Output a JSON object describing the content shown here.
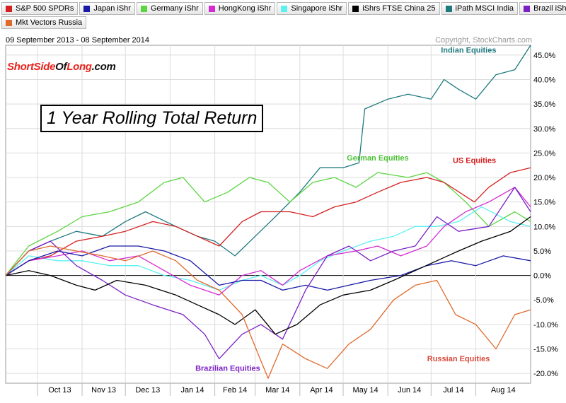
{
  "legend": {
    "row1": [
      {
        "label": "S&P 500 SPDRs",
        "color": "#d42020"
      },
      {
        "label": "Japan iShr",
        "color": "#1a1aa6"
      },
      {
        "label": "Germany iShr",
        "color": "#5ad640"
      },
      {
        "label": "HongKong iShr",
        "color": "#d42ad4"
      },
      {
        "label": "Singapore iShr",
        "color": "#5cf0f0"
      },
      {
        "label": "iShrs FTSE China 25",
        "color": "#000000"
      },
      {
        "label": "iPath MSCI India",
        "color": "#1f7a80"
      },
      {
        "label": "Brazil iShr",
        "color": "#7a20c4"
      }
    ],
    "row2": [
      {
        "label": "Mkt Vectors Russia",
        "color": "#e06a2c"
      }
    ]
  },
  "header": {
    "date_range": "09 September 2013 - 08 September 2014",
    "copyright": "Copyright, StockCharts.com"
  },
  "brand": {
    "part1": "ShortSide",
    "part2": "Of",
    "part3": "Long",
    "part4": ".com"
  },
  "title": "1 Year Rolling Total Return",
  "chart_data": {
    "type": "line",
    "title": "1 Year Rolling Total Return",
    "x_range": [
      "2013-09-09",
      "2014-09-08"
    ],
    "ylim": [
      -22,
      47
    ],
    "y_ticks": [
      -20,
      -15,
      -10,
      -5,
      0,
      5,
      10,
      15,
      20,
      25,
      30,
      35,
      40,
      45
    ],
    "y_tick_labels": [
      "-20.0%",
      "-15.0%",
      "-10.0%",
      "-5.0%",
      "0.0%",
      "5.0%",
      "10.0%",
      "15.0%",
      "20.0%",
      "25.0%",
      "30.0%",
      "35.0%",
      "40.0%",
      "45.0%"
    ],
    "x_tick_labels": [
      "Oct 13",
      "Nov 13",
      "Dec 13",
      "Jan 14",
      "Feb 14",
      "Mar 14",
      "Apr 14",
      "May 14",
      "Jun 14",
      "Jul 14",
      "Aug 14"
    ],
    "x_tick_dates": [
      "2013-10-01",
      "2013-11-01",
      "2013-12-01",
      "2014-01-01",
      "2014-02-01",
      "2014-03-01",
      "2014-04-01",
      "2014-05-01",
      "2014-06-01",
      "2014-07-01",
      "2014-08-01"
    ],
    "grid": true,
    "annotations": [
      {
        "text": "Indian Equities",
        "color": "#1f7a80",
        "date": "2014-07-27",
        "y": 45.5
      },
      {
        "text": "German Equities",
        "color": "#4cc236",
        "date": "2014-05-25",
        "y": 23.5
      },
      {
        "text": "US Equities",
        "color": "#d42020",
        "date": "2014-07-31",
        "y": 23.0
      },
      {
        "text": "Russian Equities",
        "color": "#d8483a",
        "date": "2014-07-20",
        "y": -17.5
      },
      {
        "text": "Brazilian Equities",
        "color": "#7a20c4",
        "date": "2014-02-10",
        "y": -19.5
      }
    ],
    "series": [
      {
        "name": "iPath MSCI India",
        "color": "#1f7a80",
        "points": [
          [
            "2013-09-09",
            0
          ],
          [
            "2013-09-25",
            5
          ],
          [
            "2013-10-10",
            7
          ],
          [
            "2013-10-28",
            9
          ],
          [
            "2013-11-15",
            8
          ],
          [
            "2013-12-01",
            11
          ],
          [
            "2013-12-15",
            13
          ],
          [
            "2014-01-05",
            10
          ],
          [
            "2014-01-20",
            8
          ],
          [
            "2014-02-01",
            7
          ],
          [
            "2014-02-15",
            4
          ],
          [
            "2014-03-01",
            8
          ],
          [
            "2014-03-15",
            12
          ],
          [
            "2014-04-01",
            17
          ],
          [
            "2014-04-15",
            22
          ],
          [
            "2014-05-01",
            22
          ],
          [
            "2014-05-12",
            23
          ],
          [
            "2014-05-16",
            34
          ],
          [
            "2014-06-01",
            36
          ],
          [
            "2014-06-15",
            37
          ],
          [
            "2014-07-01",
            36
          ],
          [
            "2014-07-10",
            40
          ],
          [
            "2014-07-20",
            38
          ],
          [
            "2014-08-01",
            36
          ],
          [
            "2014-08-15",
            41
          ],
          [
            "2014-08-28",
            42
          ],
          [
            "2014-09-08",
            47
          ]
        ]
      },
      {
        "name": "Germany iShr",
        "color": "#5ad640",
        "points": [
          [
            "2013-09-09",
            0
          ],
          [
            "2013-09-25",
            6
          ],
          [
            "2013-10-15",
            9
          ],
          [
            "2013-11-01",
            12
          ],
          [
            "2013-11-20",
            13
          ],
          [
            "2013-12-10",
            15
          ],
          [
            "2013-12-28",
            19
          ],
          [
            "2014-01-10",
            20
          ],
          [
            "2014-01-25",
            15
          ],
          [
            "2014-02-10",
            17
          ],
          [
            "2014-02-25",
            20
          ],
          [
            "2014-03-10",
            19
          ],
          [
            "2014-03-25",
            15
          ],
          [
            "2014-04-10",
            19
          ],
          [
            "2014-04-25",
            20
          ],
          [
            "2014-05-10",
            18
          ],
          [
            "2014-05-25",
            21
          ],
          [
            "2014-06-15",
            20
          ],
          [
            "2014-06-28",
            21
          ],
          [
            "2014-07-10",
            19
          ],
          [
            "2014-07-25",
            15
          ],
          [
            "2014-08-10",
            10
          ],
          [
            "2014-08-28",
            13
          ],
          [
            "2014-09-08",
            11
          ]
        ]
      },
      {
        "name": "S&P 500 SPDRs",
        "color": "#d42020",
        "points": [
          [
            "2013-09-09",
            0
          ],
          [
            "2013-09-25",
            3
          ],
          [
            "2013-10-10",
            4
          ],
          [
            "2013-10-28",
            7
          ],
          [
            "2013-11-15",
            8
          ],
          [
            "2013-12-01",
            9
          ],
          [
            "2013-12-20",
            11
          ],
          [
            "2014-01-05",
            10
          ],
          [
            "2014-01-20",
            8
          ],
          [
            "2014-02-04",
            6
          ],
          [
            "2014-02-20",
            11
          ],
          [
            "2014-03-05",
            13
          ],
          [
            "2014-03-25",
            13
          ],
          [
            "2014-04-10",
            12
          ],
          [
            "2014-04-25",
            14
          ],
          [
            "2014-05-10",
            15
          ],
          [
            "2014-05-25",
            17
          ],
          [
            "2014-06-10",
            19
          ],
          [
            "2014-06-28",
            20
          ],
          [
            "2014-07-10",
            19
          ],
          [
            "2014-07-31",
            15
          ],
          [
            "2014-08-10",
            18
          ],
          [
            "2014-08-25",
            21
          ],
          [
            "2014-09-08",
            22
          ]
        ]
      },
      {
        "name": "Singapore iShr",
        "color": "#5cf0f0",
        "points": [
          [
            "2013-09-09",
            0
          ],
          [
            "2013-09-25",
            4
          ],
          [
            "2013-10-15",
            3
          ],
          [
            "2013-11-01",
            3
          ],
          [
            "2013-11-20",
            2
          ],
          [
            "2013-12-10",
            2
          ],
          [
            "2013-12-28",
            0
          ],
          [
            "2014-01-15",
            -1
          ],
          [
            "2014-02-04",
            -3
          ],
          [
            "2014-02-20",
            -1
          ],
          [
            "2014-03-05",
            0
          ],
          [
            "2014-03-20",
            -2
          ],
          [
            "2014-04-01",
            0
          ],
          [
            "2014-04-15",
            3
          ],
          [
            "2014-05-01",
            5
          ],
          [
            "2014-05-20",
            7
          ],
          [
            "2014-06-05",
            8
          ],
          [
            "2014-06-20",
            10
          ],
          [
            "2014-07-05",
            10
          ],
          [
            "2014-07-20",
            11
          ],
          [
            "2014-08-05",
            14
          ],
          [
            "2014-08-25",
            11
          ],
          [
            "2014-09-08",
            10
          ]
        ]
      },
      {
        "name": "HongKong iShr",
        "color": "#d42ad4",
        "points": [
          [
            "2013-09-09",
            0
          ],
          [
            "2013-09-25",
            3
          ],
          [
            "2013-10-15",
            4
          ],
          [
            "2013-11-01",
            5
          ],
          [
            "2013-11-20",
            3
          ],
          [
            "2013-12-10",
            4
          ],
          [
            "2013-12-28",
            1
          ],
          [
            "2014-01-15",
            -2
          ],
          [
            "2014-02-04",
            -4
          ],
          [
            "2014-02-20",
            0
          ],
          [
            "2014-03-05",
            1
          ],
          [
            "2014-03-20",
            -2
          ],
          [
            "2014-04-01",
            1
          ],
          [
            "2014-04-20",
            4
          ],
          [
            "2014-05-10",
            5
          ],
          [
            "2014-05-25",
            6
          ],
          [
            "2014-06-10",
            4
          ],
          [
            "2014-06-28",
            6
          ],
          [
            "2014-07-10",
            10
          ],
          [
            "2014-07-25",
            13
          ],
          [
            "2014-08-10",
            15
          ],
          [
            "2014-08-28",
            18
          ],
          [
            "2014-09-08",
            14
          ]
        ]
      },
      {
        "name": "Japan iShr",
        "color": "#1a1aa6",
        "points": [
          [
            "2013-09-09",
            0
          ],
          [
            "2013-09-25",
            3
          ],
          [
            "2013-10-15",
            5
          ],
          [
            "2013-11-01",
            4
          ],
          [
            "2013-11-20",
            6
          ],
          [
            "2013-12-10",
            6
          ],
          [
            "2013-12-28",
            5
          ],
          [
            "2014-01-15",
            3
          ],
          [
            "2014-02-04",
            -2
          ],
          [
            "2014-02-20",
            -1
          ],
          [
            "2014-03-05",
            -1
          ],
          [
            "2014-03-20",
            -3
          ],
          [
            "2014-04-05",
            -2
          ],
          [
            "2014-04-20",
            -3
          ],
          [
            "2014-05-05",
            -2
          ],
          [
            "2014-05-20",
            -1
          ],
          [
            "2014-06-10",
            0
          ],
          [
            "2014-06-28",
            2
          ],
          [
            "2014-07-15",
            3
          ],
          [
            "2014-08-01",
            2
          ],
          [
            "2014-08-20",
            4
          ],
          [
            "2014-09-08",
            3
          ]
        ]
      },
      {
        "name": "Brazil iShr",
        "color": "#7a20c4",
        "points": [
          [
            "2013-09-09",
            0
          ],
          [
            "2013-09-25",
            5
          ],
          [
            "2013-10-10",
            7
          ],
          [
            "2013-10-28",
            2
          ],
          [
            "2013-11-15",
            -1
          ],
          [
            "2013-12-01",
            -4
          ],
          [
            "2013-12-20",
            -6
          ],
          [
            "2014-01-10",
            -8
          ],
          [
            "2014-01-25",
            -12
          ],
          [
            "2014-02-04",
            -17
          ],
          [
            "2014-02-20",
            -12
          ],
          [
            "2014-03-05",
            -10
          ],
          [
            "2014-03-20",
            -13
          ],
          [
            "2014-04-05",
            -3
          ],
          [
            "2014-04-20",
            4
          ],
          [
            "2014-05-05",
            6
          ],
          [
            "2014-05-20",
            3
          ],
          [
            "2014-06-05",
            5
          ],
          [
            "2014-06-20",
            6
          ],
          [
            "2014-07-05",
            12
          ],
          [
            "2014-07-20",
            9
          ],
          [
            "2014-08-10",
            10
          ],
          [
            "2014-08-28",
            18
          ],
          [
            "2014-09-08",
            13
          ]
        ]
      },
      {
        "name": "iShrs FTSE China 25",
        "color": "#000000",
        "points": [
          [
            "2013-09-09",
            0
          ],
          [
            "2013-09-25",
            1
          ],
          [
            "2013-10-10",
            0
          ],
          [
            "2013-10-28",
            -2
          ],
          [
            "2013-11-10",
            -3
          ],
          [
            "2013-11-25",
            -1
          ],
          [
            "2013-12-15",
            -2
          ],
          [
            "2014-01-05",
            -4
          ],
          [
            "2014-01-20",
            -6
          ],
          [
            "2014-02-04",
            -8
          ],
          [
            "2014-02-15",
            -10
          ],
          [
            "2014-03-01",
            -7
          ],
          [
            "2014-03-15",
            -12
          ],
          [
            "2014-03-30",
            -10
          ],
          [
            "2014-04-15",
            -6
          ],
          [
            "2014-05-01",
            -4
          ],
          [
            "2014-05-20",
            -3
          ],
          [
            "2014-06-05",
            -1
          ],
          [
            "2014-06-20",
            1
          ],
          [
            "2014-07-05",
            3
          ],
          [
            "2014-07-20",
            5
          ],
          [
            "2014-08-05",
            7
          ],
          [
            "2014-08-25",
            9
          ],
          [
            "2014-09-08",
            12
          ]
        ]
      },
      {
        "name": "Mkt Vectors Russia",
        "color": "#e06a2c",
        "points": [
          [
            "2013-09-09",
            0
          ],
          [
            "2013-09-25",
            5
          ],
          [
            "2013-10-10",
            6
          ],
          [
            "2013-10-28",
            5
          ],
          [
            "2013-11-15",
            4
          ],
          [
            "2013-12-01",
            3
          ],
          [
            "2013-12-20",
            5
          ],
          [
            "2014-01-05",
            3
          ],
          [
            "2014-01-20",
            -1
          ],
          [
            "2014-02-04",
            -3
          ],
          [
            "2014-02-20",
            -8
          ],
          [
            "2014-03-03",
            -16
          ],
          [
            "2014-03-10",
            -21
          ],
          [
            "2014-03-20",
            -14
          ],
          [
            "2014-04-05",
            -17
          ],
          [
            "2014-04-20",
            -19
          ],
          [
            "2014-05-05",
            -14
          ],
          [
            "2014-05-20",
            -11
          ],
          [
            "2014-06-05",
            -5
          ],
          [
            "2014-06-20",
            -2
          ],
          [
            "2014-07-05",
            -1
          ],
          [
            "2014-07-18",
            -8
          ],
          [
            "2014-08-01",
            -10
          ],
          [
            "2014-08-15",
            -15
          ],
          [
            "2014-08-28",
            -8
          ],
          [
            "2014-09-08",
            -7
          ]
        ]
      }
    ]
  }
}
